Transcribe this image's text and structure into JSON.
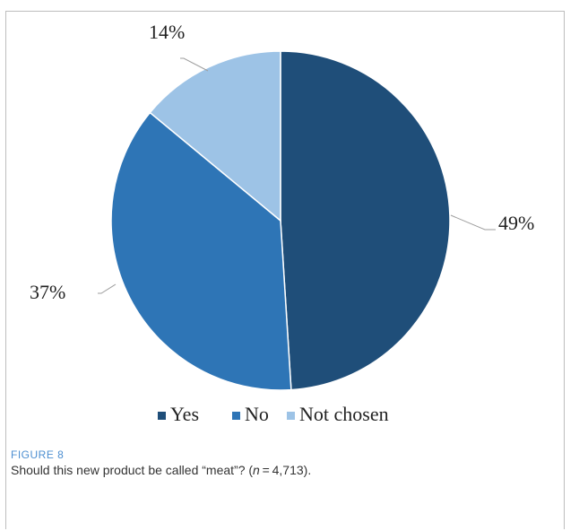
{
  "figure": {
    "label": "FIGURE 8",
    "caption_prefix": "Should this new product be called “meat”? (",
    "caption_n_italic": "n",
    "caption_suffix": " = 4,713)."
  },
  "chart_data": {
    "type": "pie",
    "categories": [
      "Yes",
      "No",
      "Not chosen"
    ],
    "values": [
      49,
      37,
      14
    ],
    "labels": [
      "49%",
      "37%",
      "14%"
    ],
    "colors": [
      "#1f4e79",
      "#2e75b6",
      "#9dc3e6"
    ],
    "legend": {
      "position": "bottom",
      "entries": [
        "Yes",
        "No",
        "Not chosen"
      ]
    },
    "title": ""
  }
}
